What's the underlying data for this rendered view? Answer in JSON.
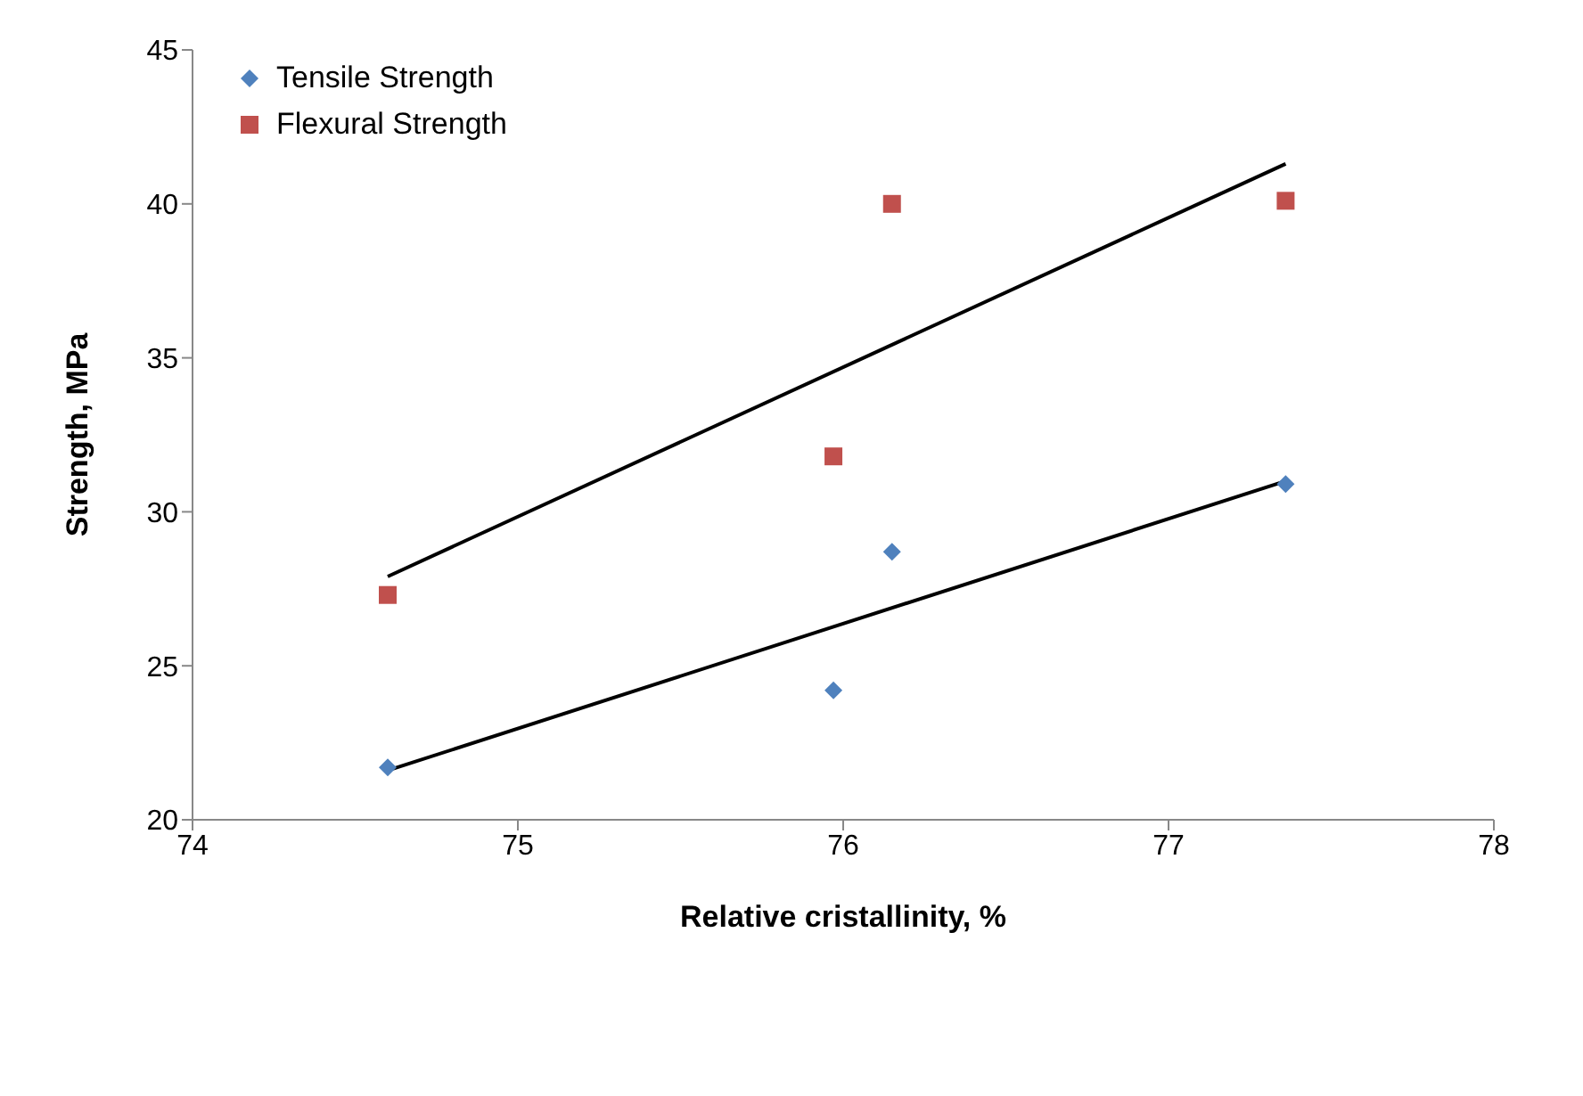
{
  "chart_data": {
    "type": "scatter",
    "xlabel": "Relative cristallinity, %",
    "ylabel": "Strength, MPa",
    "xlim": [
      74,
      78
    ],
    "xticks": [
      74,
      75,
      76,
      77,
      78
    ],
    "ylim": [
      20,
      45
    ],
    "yticks": [
      20,
      25,
      30,
      35,
      40,
      45
    ],
    "grid": false,
    "legend": "top left",
    "series": [
      {
        "name": "Tensile Strength",
        "color": "#4f81bd",
        "marker": "diamond",
        "x": [
          74.6,
          75.97,
          76.15,
          77.36
        ],
        "values": [
          21.7,
          24.2,
          28.7,
          30.9
        ]
      },
      {
        "name": "Flexural Strength",
        "color": "#c0504d",
        "marker": "square",
        "x": [
          74.6,
          75.97,
          76.15,
          77.36
        ],
        "values": [
          27.3,
          31.8,
          40.0,
          40.1
        ]
      },
      {
        "type": "line",
        "color": "#000000",
        "marker": "none",
        "x": [
          74.6,
          77.36
        ],
        "values": [
          21.6,
          31.0
        ]
      },
      {
        "type": "line",
        "color": "#000000",
        "marker": "none",
        "x": [
          74.6,
          77.36
        ],
        "values": [
          27.9,
          41.3
        ]
      }
    ]
  }
}
